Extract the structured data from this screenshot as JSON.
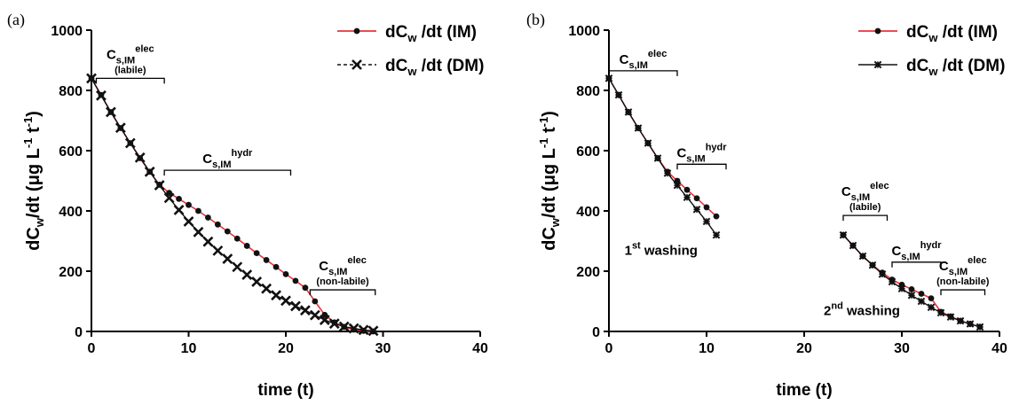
{
  "colors": {
    "im_line": "#e8333b",
    "marker": "#111111",
    "axis": "#000000"
  },
  "chart_data": [
    {
      "panel_label": "(a)",
      "type": "line",
      "xlabel": "time (t)",
      "ylabel": {
        "base": "dC",
        "sub": "w",
        "mid": "/dt (μg L",
        "sup1": "-1",
        "sep": " t",
        "sup2": "-1",
        "end": ")"
      },
      "xlim": [
        0,
        40
      ],
      "ylim": [
        0,
        1000
      ],
      "xticks": [
        0,
        10,
        20,
        30,
        40
      ],
      "yticks": [
        0,
        200,
        400,
        600,
        800,
        1000
      ],
      "legend": [
        {
          "pre": "dC",
          "sub": "w",
          "post": " /dt (IM)",
          "marker": "dot"
        },
        {
          "pre": "dC",
          "sub": "w",
          "post": " /dt (DM)",
          "marker": "x"
        }
      ],
      "series": [
        {
          "name": "dCw /dt (IM)",
          "marker": "dot",
          "color": "#e8333b",
          "x": [
            0,
            1,
            2,
            3,
            4,
            5,
            6,
            7,
            8,
            9,
            10,
            11,
            12,
            13,
            14,
            15,
            16,
            17,
            18,
            19,
            20,
            21,
            22,
            23,
            24,
            25,
            26,
            27,
            28,
            29
          ],
          "y": [
            840,
            785,
            728,
            675,
            625,
            575,
            530,
            487,
            460,
            440,
            420,
            400,
            378,
            355,
            332,
            308,
            284,
            260,
            237,
            214,
            190,
            168,
            145,
            100,
            55,
            30,
            15,
            6,
            2,
            0
          ]
        },
        {
          "name": "dCw /dt (DM)",
          "marker": "x",
          "color": "#111111",
          "x": [
            0,
            1,
            2,
            3,
            4,
            5,
            6,
            7,
            8,
            9,
            10,
            11,
            12,
            13,
            14,
            15,
            16,
            17,
            18,
            19,
            20,
            21,
            22,
            23,
            24,
            25,
            26,
            27,
            28,
            29
          ],
          "y": [
            840,
            783,
            728,
            676,
            625,
            577,
            530,
            485,
            443,
            403,
            365,
            330,
            298,
            268,
            241,
            214,
            188,
            165,
            142,
            120,
            102,
            84,
            70,
            54,
            38,
            26,
            16,
            10,
            5,
            2
          ]
        }
      ],
      "annotations": [
        {
          "base": "C",
          "sub": "s,IM",
          "sup": "elec",
          "note": "(labile)",
          "bracket": [
            0.5,
            7.5
          ],
          "y": 840
        },
        {
          "base": "C",
          "sub": "s,IM",
          "sup": "hydr",
          "note": "",
          "bracket": [
            7.5,
            20.5
          ],
          "y": 535
        },
        {
          "base": "C",
          "sub": "s,IM",
          "sup": "elec",
          "note": "(non-labile)",
          "bracket": [
            22.5,
            29.2
          ],
          "y": 138
        }
      ]
    },
    {
      "panel_label": "(b)",
      "type": "line",
      "xlabel": "time (t)",
      "ylabel": {
        "base": "dC",
        "sub": "w",
        "mid": "/dt (μg L",
        "sup1": "-1",
        "sep": " t",
        "sup2": "-1",
        "end": ")"
      },
      "xlim": [
        0,
        40
      ],
      "ylim": [
        0,
        1000
      ],
      "xticks": [
        0,
        10,
        20,
        30,
        40
      ],
      "yticks": [
        0,
        200,
        400,
        600,
        800,
        1000
      ],
      "legend": [
        {
          "pre": "dC",
          "sub": "w",
          "post": " /dt (IM)",
          "marker": "dot"
        },
        {
          "pre": "dC",
          "sub": "w",
          "post": " /dt (DM)",
          "marker": "star"
        }
      ],
      "series": [
        {
          "name": "dCw /dt (IM)",
          "marker": "dot",
          "color": "#e8333b",
          "x": [
            0,
            1,
            2,
            3,
            4,
            5,
            6,
            7,
            8,
            9,
            10,
            11,
            24,
            25,
            26,
            27,
            28,
            29,
            30,
            31,
            32,
            33,
            34,
            35,
            36,
            37,
            38
          ],
          "y": [
            840,
            785,
            728,
            675,
            625,
            575,
            530,
            500,
            470,
            442,
            412,
            382,
            320,
            285,
            250,
            220,
            195,
            172,
            155,
            140,
            125,
            110,
            65,
            50,
            35,
            25,
            15
          ]
        },
        {
          "name": "dCw /dt (DM)",
          "marker": "star",
          "color": "#111111",
          "x": [
            0,
            1,
            2,
            3,
            4,
            5,
            6,
            7,
            8,
            9,
            10,
            11,
            24,
            25,
            26,
            27,
            28,
            29,
            30,
            31,
            32,
            33,
            34,
            35,
            36,
            37,
            38
          ],
          "y": [
            840,
            785,
            728,
            675,
            625,
            575,
            525,
            485,
            445,
            405,
            365,
            320,
            320,
            285,
            250,
            220,
            190,
            165,
            142,
            120,
            100,
            80,
            62,
            48,
            35,
            25,
            15
          ]
        }
      ],
      "annotations": [
        {
          "base": "C",
          "sub": "s,IM",
          "sup": "elec",
          "note": "",
          "bracket": [
            0,
            7
          ],
          "y": 865
        },
        {
          "base": "C",
          "sub": "s,IM",
          "sup": "hydr",
          "note": "",
          "bracket": [
            7,
            12
          ],
          "y": 555
        },
        {
          "base": "C",
          "sub": "s,IM",
          "sup": "elec",
          "note": "(labile)",
          "bracket": [
            24,
            28.5
          ],
          "y": 385
        },
        {
          "base": "C",
          "sub": "s,IM",
          "sup": "hydr",
          "note": "",
          "bracket": [
            29,
            34
          ],
          "y": 230
        },
        {
          "base": "C",
          "sub": "s,IM",
          "sup": "elec",
          "note": "(non-labile)",
          "bracket": [
            34,
            38.5
          ],
          "y": 138
        }
      ],
      "texts": [
        {
          "base": "1",
          "sup": "st",
          "post": " washing",
          "x": 1.6,
          "y": 255
        },
        {
          "base": "2",
          "sup": "nd",
          "post": " washing",
          "x": 22,
          "y": 55
        }
      ]
    }
  ]
}
